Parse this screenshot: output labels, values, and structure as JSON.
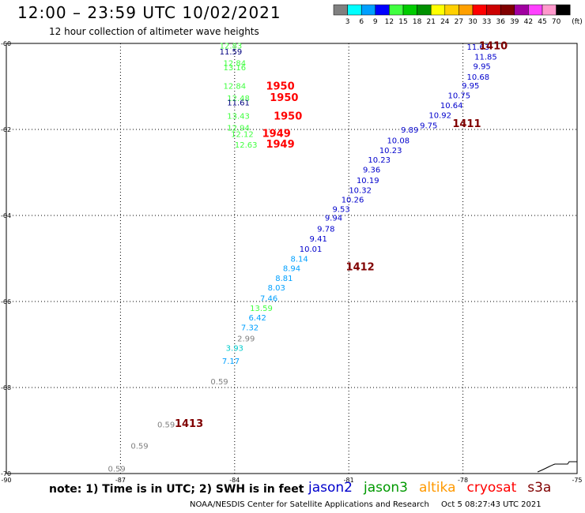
{
  "header": {
    "title": "12:00 – 23:59 UTC 10/02/2021",
    "subtitle": "12 hour collection of altimeter wave heights"
  },
  "footer": {
    "note": "note: 1) Time is in UTC; 2) SWH is in feet",
    "credit": "NOAA/NESDIS Center for Satellite Applications and Research",
    "timestamp": "Oct  5 08:27:43 UTC 2021"
  },
  "missions": [
    {
      "name": "jason2",
      "color": "#0000cc"
    },
    {
      "name": "jason3",
      "color": "#009900"
    },
    {
      "name": "altika",
      "color": "#ff9900"
    },
    {
      "name": "cryosat",
      "color": "#ff0000"
    },
    {
      "name": "s3a",
      "color": "#800000"
    }
  ],
  "chart_data": {
    "type": "scatter",
    "title": "12:00 – 23:59 UTC 10/02/2021",
    "subtitle": "12 hour collection of altimeter wave heights",
    "xlim": [
      -90,
      -75
    ],
    "ylim": [
      -70,
      -60
    ],
    "x_ticks": [
      -90,
      -87,
      -84,
      -81,
      -78,
      -75
    ],
    "y_ticks": [
      -60,
      -62,
      -64,
      -66,
      -68,
      -70
    ],
    "grid": true,
    "colorbar": {
      "unit": "(ft)",
      "labels": [
        "3",
        "6",
        "9",
        "12",
        "15",
        "18",
        "21",
        "24",
        "27",
        "30",
        "33",
        "36",
        "39",
        "42",
        "45",
        "70"
      ],
      "colors": [
        "#808080",
        "#00ffff",
        "#00a0ff",
        "#0000ff",
        "#40ff40",
        "#00cc00",
        "#009000",
        "#ffff00",
        "#ffd000",
        "#ffa000",
        "#ff0000",
        "#cc0000",
        "#800000",
        "#a000a0",
        "#ff40ff",
        "#ff99cc",
        "#000000"
      ]
    },
    "points": [
      {
        "x": -84.1,
        "y": -60.05,
        "label": "12.83",
        "color": "#40ff40"
      },
      {
        "x": -84.1,
        "y": -60.18,
        "label": "11.59",
        "color": "#000080"
      },
      {
        "x": -84.0,
        "y": -60.45,
        "label": "12.84",
        "color": "#40ff40"
      },
      {
        "x": -84.0,
        "y": -60.55,
        "label": "13.16",
        "color": "#40ff40"
      },
      {
        "x": -84.0,
        "y": -60.98,
        "label": "12.84",
        "color": "#40ff40"
      },
      {
        "x": -83.9,
        "y": -61.27,
        "label": "12.48",
        "color": "#40ff40"
      },
      {
        "x": -83.9,
        "y": -61.37,
        "label": "11.61",
        "color": "#000080"
      },
      {
        "x": -83.9,
        "y": -61.68,
        "label": "13.43",
        "color": "#40ff40"
      },
      {
        "x": -83.9,
        "y": -61.95,
        "label": "12.94",
        "color": "#40ff40"
      },
      {
        "x": -83.8,
        "y": -62.1,
        "label": "12.12",
        "color": "#40ff40"
      },
      {
        "x": -83.7,
        "y": -62.35,
        "label": "12.63",
        "color": "#40ff40"
      },
      {
        "x": -77.6,
        "y": -60.07,
        "label": "11.63",
        "color": "#0000cc"
      },
      {
        "x": -77.4,
        "y": -60.3,
        "label": "11.85",
        "color": "#0000cc"
      },
      {
        "x": -77.5,
        "y": -60.52,
        "label": "9.95",
        "color": "#0000cc"
      },
      {
        "x": -77.6,
        "y": -60.77,
        "label": "10.68",
        "color": "#0000cc"
      },
      {
        "x": -77.8,
        "y": -60.97,
        "label": "9.95",
        "color": "#0000cc"
      },
      {
        "x": -78.1,
        "y": -61.2,
        "label": "10.75",
        "color": "#0000cc"
      },
      {
        "x": -78.3,
        "y": -61.43,
        "label": "10.64",
        "color": "#0000cc"
      },
      {
        "x": -78.6,
        "y": -61.66,
        "label": "10.92",
        "color": "#0000cc"
      },
      {
        "x": -78.9,
        "y": -61.9,
        "label": "9.75",
        "color": "#0000cc"
      },
      {
        "x": -79.4,
        "y": -62.0,
        "label": "9.89",
        "color": "#0000cc"
      },
      {
        "x": -79.7,
        "y": -62.25,
        "label": "10.08",
        "color": "#0000cc"
      },
      {
        "x": -79.9,
        "y": -62.48,
        "label": "10.23",
        "color": "#0000cc"
      },
      {
        "x": -80.2,
        "y": -62.7,
        "label": "10.23",
        "color": "#0000cc"
      },
      {
        "x": -80.4,
        "y": -62.93,
        "label": "9.36",
        "color": "#0000cc"
      },
      {
        "x": -80.5,
        "y": -63.17,
        "label": "10.19",
        "color": "#0000cc"
      },
      {
        "x": -80.7,
        "y": -63.4,
        "label": "10.32",
        "color": "#0000cc"
      },
      {
        "x": -80.9,
        "y": -63.62,
        "label": "10.26",
        "color": "#0000cc"
      },
      {
        "x": -81.2,
        "y": -63.84,
        "label": "9.53",
        "color": "#0000cc"
      },
      {
        "x": -81.4,
        "y": -64.05,
        "label": "9.94",
        "color": "#0000cc"
      },
      {
        "x": -81.6,
        "y": -64.3,
        "label": "9.78",
        "color": "#0000cc"
      },
      {
        "x": -81.8,
        "y": -64.53,
        "label": "9.41",
        "color": "#0000cc"
      },
      {
        "x": -82.0,
        "y": -64.77,
        "label": "10.01",
        "color": "#0000cc"
      },
      {
        "x": -82.3,
        "y": -65.0,
        "label": "8.14",
        "color": "#00a0ff"
      },
      {
        "x": -82.5,
        "y": -65.22,
        "label": "8.94",
        "color": "#00a0ff"
      },
      {
        "x": -82.7,
        "y": -65.45,
        "label": "8.81",
        "color": "#00a0ff"
      },
      {
        "x": -82.9,
        "y": -65.67,
        "label": "8.03",
        "color": "#00a0ff"
      },
      {
        "x": -83.1,
        "y": -65.92,
        "label": "7.46",
        "color": "#00a0ff"
      },
      {
        "x": -83.3,
        "y": -66.15,
        "label": "13.59",
        "color": "#40ff40"
      },
      {
        "x": -83.4,
        "y": -66.37,
        "label": "6.42",
        "color": "#00a0ff"
      },
      {
        "x": -83.6,
        "y": -66.6,
        "label": "7.32",
        "color": "#00a0ff"
      },
      {
        "x": -83.7,
        "y": -66.85,
        "label": "2.99",
        "color": "#808080"
      },
      {
        "x": -84.0,
        "y": -67.07,
        "label": "3.93",
        "color": "#00cccc"
      },
      {
        "x": -84.1,
        "y": -67.38,
        "label": "7.17",
        "color": "#00a0ff"
      },
      {
        "x": -84.4,
        "y": -67.85,
        "label": "0.59",
        "color": "#808080"
      },
      {
        "x": -85.8,
        "y": -68.85,
        "label": "0.59",
        "color": "#808080"
      },
      {
        "x": -86.5,
        "y": -69.35,
        "label": "0.59",
        "color": "#808080"
      },
      {
        "x": -87.1,
        "y": -69.88,
        "label": "0.59",
        "color": "#808080"
      }
    ],
    "time_labels": [
      {
        "x": -77.2,
        "y": -60.05,
        "label": "1410",
        "color": "#800000"
      },
      {
        "x": -77.9,
        "y": -61.85,
        "label": "1411",
        "color": "#800000"
      },
      {
        "x": -80.7,
        "y": -65.18,
        "label": "1412",
        "color": "#800000"
      },
      {
        "x": -85.2,
        "y": -68.83,
        "label": "1413",
        "color": "#800000"
      },
      {
        "x": -82.8,
        "y": -60.98,
        "label": "1950",
        "color": "#ff0000"
      },
      {
        "x": -82.7,
        "y": -61.25,
        "label": "1950",
        "color": "#ff0000"
      },
      {
        "x": -82.6,
        "y": -61.68,
        "label": "1950",
        "color": "#ff0000"
      },
      {
        "x": -82.9,
        "y": -62.08,
        "label": "1949",
        "color": "#ff0000"
      },
      {
        "x": -82.8,
        "y": -62.33,
        "label": "1949",
        "color": "#ff0000"
      }
    ]
  }
}
